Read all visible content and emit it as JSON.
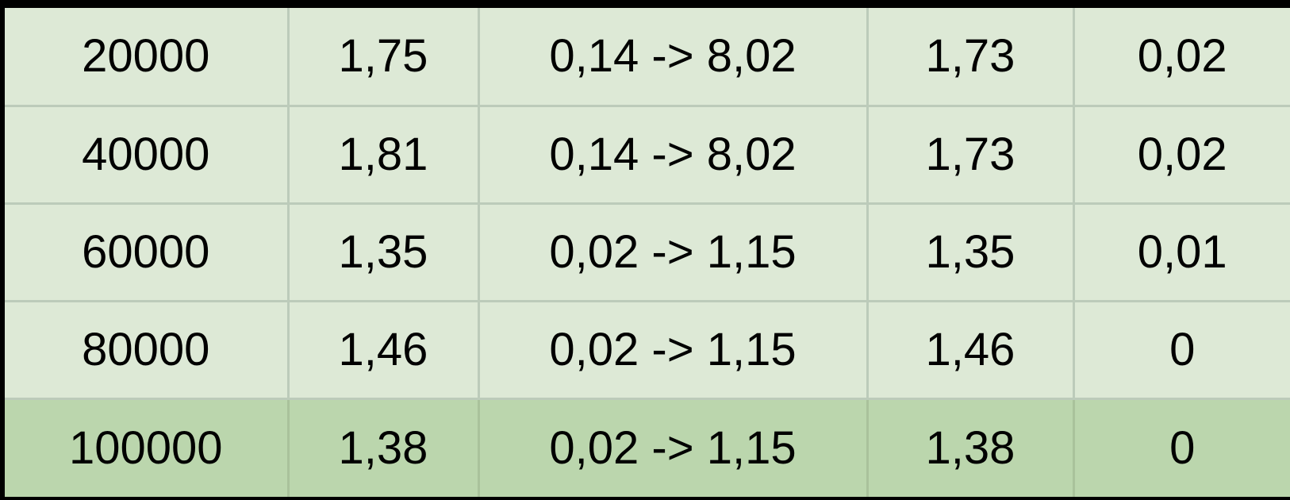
{
  "table": {
    "rows": [
      [
        "20000",
        "1,75",
        "0,14 -> 8,02",
        "1,73",
        "0,02"
      ],
      [
        "40000",
        "1,81",
        "0,14 -> 8,02",
        "1,73",
        "0,02"
      ],
      [
        "60000",
        "1,35",
        "0,02 -> 1,15",
        "1,35",
        "0,01"
      ],
      [
        "80000",
        "1,46",
        "0,02 -> 1,15",
        "1,46",
        "0"
      ],
      [
        "100000",
        "1,38",
        "0,02 -> 1,15",
        "1,38",
        "0"
      ]
    ]
  },
  "colors": {
    "row_light": "#dde9d6",
    "row_highlight": "#bbd6ad",
    "grid": "#bccbba",
    "frame": "#000000"
  }
}
